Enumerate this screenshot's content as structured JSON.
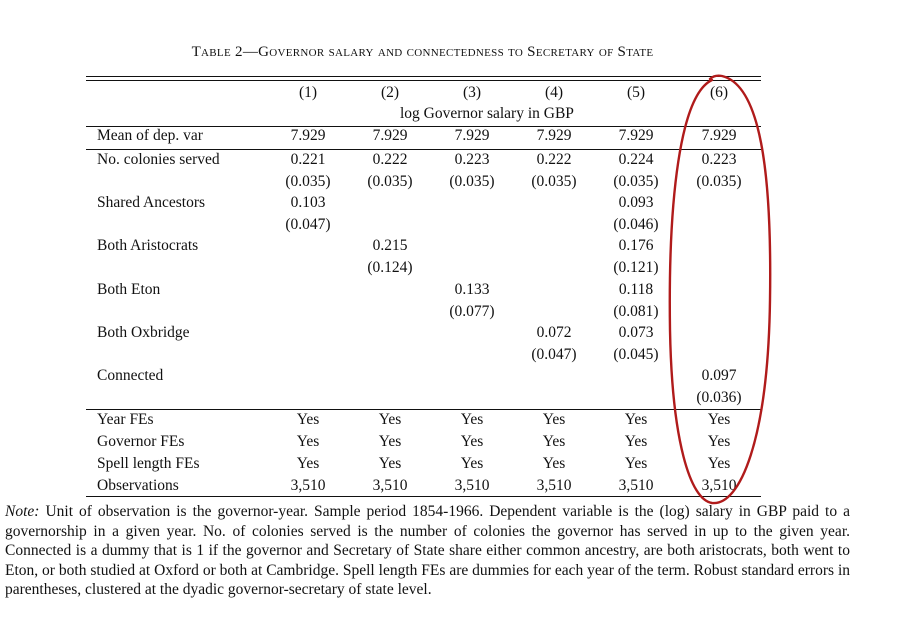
{
  "caption": "Table 2—Governor salary and connectedness to Secretary of State",
  "columns": [
    "(1)",
    "(2)",
    "(3)",
    "(4)",
    "(5)",
    "(6)"
  ],
  "dep_var_label": "log Governor salary in GBP",
  "mean_row": {
    "label": "Mean of dep. var",
    "values": [
      "7.929",
      "7.929",
      "7.929",
      "7.929",
      "7.929",
      "7.929"
    ]
  },
  "coef_rows": [
    {
      "label": "No. colonies served",
      "coef": [
        "0.221",
        "0.222",
        "0.223",
        "0.222",
        "0.224",
        "0.223"
      ],
      "se": [
        "(0.035)",
        "(0.035)",
        "(0.035)",
        "(0.035)",
        "(0.035)",
        "(0.035)"
      ]
    },
    {
      "label": "Shared Ancestors",
      "coef": [
        "0.103",
        "",
        "",
        "",
        "0.093",
        ""
      ],
      "se": [
        "(0.047)",
        "",
        "",
        "",
        "(0.046)",
        ""
      ]
    },
    {
      "label": "Both Aristocrats",
      "coef": [
        "",
        "0.215",
        "",
        "",
        "0.176",
        ""
      ],
      "se": [
        "",
        "(0.124)",
        "",
        "",
        "(0.121)",
        ""
      ]
    },
    {
      "label": "Both Eton",
      "coef": [
        "",
        "",
        "0.133",
        "",
        "0.118",
        ""
      ],
      "se": [
        "",
        "",
        "(0.077)",
        "",
        "(0.081)",
        ""
      ]
    },
    {
      "label": "Both Oxbridge",
      "coef": [
        "",
        "",
        "",
        "0.072",
        "0.073",
        ""
      ],
      "se": [
        "",
        "",
        "",
        "(0.047)",
        "(0.045)",
        ""
      ]
    },
    {
      "label": "Connected",
      "coef": [
        "",
        "",
        "",
        "",
        "",
        "0.097"
      ],
      "se": [
        "",
        "",
        "",
        "",
        "",
        "(0.036)"
      ]
    }
  ],
  "fe_rows": [
    {
      "label": "Year FEs",
      "values": [
        "Yes",
        "Yes",
        "Yes",
        "Yes",
        "Yes",
        "Yes"
      ]
    },
    {
      "label": "Governor FEs",
      "values": [
        "Yes",
        "Yes",
        "Yes",
        "Yes",
        "Yes",
        "Yes"
      ]
    },
    {
      "label": "Spell length FEs",
      "values": [
        "Yes",
        "Yes",
        "Yes",
        "Yes",
        "Yes",
        "Yes"
      ]
    },
    {
      "label": "Observations",
      "values": [
        "3,510",
        "3,510",
        "3,510",
        "3,510",
        "3,510",
        "3,510"
      ]
    }
  ],
  "note": {
    "lead": "Note:",
    "text": " Unit of observation is the governor-year. Sample period 1854-1966. Dependent variable is the (log) salary in GBP paid to a governorship in a given year. No. of colonies served is the number of colonies the governor has served in up to the given year. Connected is a dummy that is 1 if the governor and Secretary of State share either common ancestry, are both aristocrats, both went to Eton, or both studied at Oxford or both at Cambridge. Spell length FEs are dummies for each year of the term. Robust standard errors in parentheses, clustered at the dyadic governor-secretary of state level."
  },
  "annotation": {
    "shape": "hand-drawn ellipse",
    "color": "#b01b1b",
    "highlights_column": "(6)"
  }
}
